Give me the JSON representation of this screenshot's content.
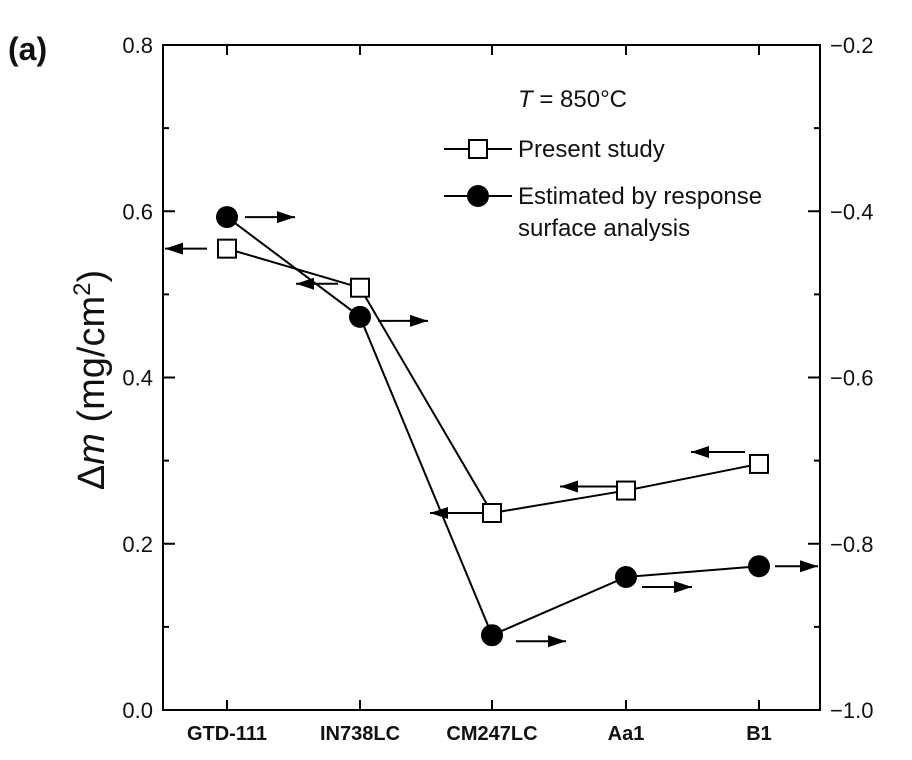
{
  "panel_label": "(a)",
  "annotation": {
    "var": "T",
    "text": " = 850°C"
  },
  "chart_data": {
    "type": "line",
    "categories": [
      "GTD-111",
      "IN738LC",
      "CM247LC",
      "Aa1",
      "B1"
    ],
    "ylabel_left": {
      "delta": "Δ",
      "var": "m",
      "unit_open": " (mg/cm",
      "sup": "2",
      "unit_close": ")"
    },
    "ylim_left": [
      0.0,
      0.8
    ],
    "ylim_right": [
      -1.0,
      -0.2
    ],
    "left_ticks": [
      "0.0",
      "0.2",
      "0.4",
      "0.6",
      "0.8"
    ],
    "right_ticks": [
      "−1.0",
      "−0.8",
      "−0.6",
      "−0.4",
      "−0.2"
    ],
    "series": [
      {
        "name": "Present study",
        "marker": "open-square",
        "axis": "left",
        "values": [
          0.555,
          0.508,
          0.237,
          0.264,
          0.296
        ]
      },
      {
        "name": "Estimated by response surface analysis",
        "name_lines": [
          "Estimated by response",
          "surface analysis"
        ],
        "marker": "filled-circle",
        "axis": "right",
        "values": [
          -0.407,
          -0.527,
          -0.91,
          -0.84,
          -0.827
        ]
      }
    ],
    "legend_position": "top-right",
    "grid": false,
    "colors": {
      "line": "#000000",
      "background": "#ffffff"
    }
  }
}
